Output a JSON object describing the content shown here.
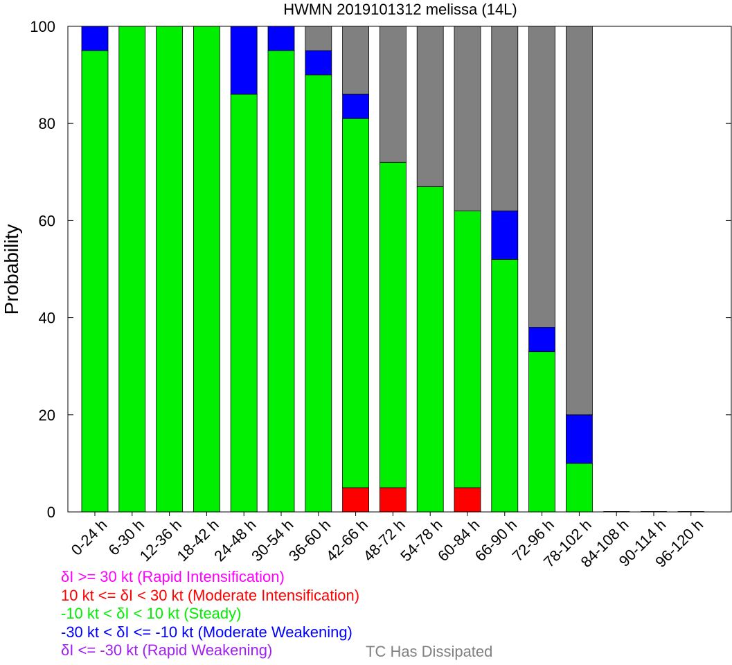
{
  "chart_data": {
    "type": "bar",
    "stacked": true,
    "title": "HWMN 2019101312 melissa (14L)",
    "ylabel": "Probability",
    "xlabel": "",
    "ylim": [
      0,
      100
    ],
    "yticks": [
      0,
      20,
      40,
      60,
      80,
      100
    ],
    "categories": [
      "0-24 h",
      "6-30 h",
      "12-36 h",
      "18-42 h",
      "24-48 h",
      "30-54 h",
      "36-60 h",
      "42-66 h",
      "48-72 h",
      "54-78 h",
      "60-84 h",
      "66-90 h",
      "72-96 h",
      "78-102 h",
      "84-108 h",
      "90-114 h",
      "96-120 h"
    ],
    "series": [
      {
        "key": "ri",
        "color": "#ff00ff",
        "values": [
          0,
          0,
          0,
          0,
          0,
          0,
          0,
          0,
          0,
          0,
          0,
          0,
          0,
          0,
          0,
          0,
          0
        ]
      },
      {
        "key": "mi",
        "color": "#ff0000",
        "values": [
          0,
          0,
          0,
          0,
          0,
          0,
          0,
          5,
          5,
          0,
          5,
          0,
          0,
          0,
          0,
          0,
          0
        ]
      },
      {
        "key": "steady",
        "color": "#00ee00",
        "values": [
          95,
          100,
          100,
          100,
          86,
          95,
          90,
          76,
          67,
          67,
          57,
          52,
          33,
          10,
          0,
          0,
          0
        ]
      },
      {
        "key": "mw",
        "color": "#0000ff",
        "values": [
          5,
          0,
          0,
          0,
          14,
          5,
          5,
          5,
          0,
          0,
          0,
          10,
          5,
          10,
          0,
          0,
          0
        ]
      },
      {
        "key": "rw",
        "color": "#a020f0",
        "values": [
          0,
          0,
          0,
          0,
          0,
          0,
          0,
          0,
          0,
          0,
          0,
          0,
          0,
          0,
          0,
          0,
          0
        ]
      },
      {
        "key": "dissipated",
        "color": "#808080",
        "values": [
          0,
          0,
          0,
          0,
          0,
          0,
          5,
          14,
          28,
          33,
          38,
          38,
          62,
          80,
          0,
          0,
          0
        ]
      }
    ]
  },
  "legend": {
    "ri": "δI >= 30 kt (Rapid Intensification)",
    "mi": "10 kt <= δI < 30 kt (Moderate Intensification)",
    "steady": "-10 kt < δI < 10 kt (Steady)",
    "mw": "-30 kt < δI <= -10 kt (Moderate Weakening)",
    "rw": "δI <= -30 kt (Rapid Weakening)",
    "dissipated": "TC Has Dissipated"
  },
  "colors": {
    "ri": "#ff00ff",
    "mi": "#ff0000",
    "steady": "#00ee00",
    "mw": "#0000ff",
    "rw": "#a020f0",
    "dissipated": "#808080"
  }
}
